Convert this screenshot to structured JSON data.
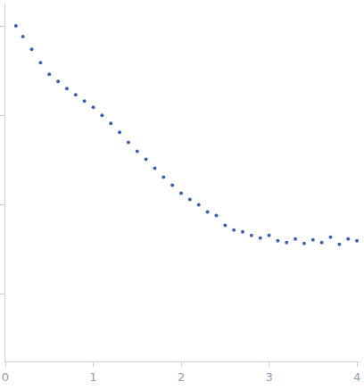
{
  "chart_data": {
    "type": "scatter",
    "x": [
      0.12,
      0.2,
      0.3,
      0.4,
      0.5,
      0.6,
      0.7,
      0.8,
      0.9,
      1.0,
      1.1,
      1.2,
      1.3,
      1.4,
      1.5,
      1.6,
      1.7,
      1.8,
      1.9,
      2.0,
      2.1,
      2.2,
      2.3,
      2.4,
      2.5,
      2.6,
      2.7,
      2.8,
      2.9,
      3.0,
      3.1,
      3.2,
      3.3,
      3.4,
      3.5,
      3.6,
      3.7,
      3.8,
      3.9,
      4.0
    ],
    "values": [
      4.0,
      3.88,
      3.74,
      3.59,
      3.46,
      3.38,
      3.3,
      3.23,
      3.16,
      3.09,
      3.0,
      2.91,
      2.81,
      2.7,
      2.6,
      2.51,
      2.41,
      2.31,
      2.22,
      2.13,
      2.06,
      2.0,
      1.92,
      1.88,
      1.77,
      1.72,
      1.7,
      1.66,
      1.63,
      1.66,
      1.6,
      1.58,
      1.62,
      1.57,
      1.61,
      1.58,
      1.64,
      1.56,
      1.62,
      1.6
    ],
    "color": "#3d62b3",
    "marker": "circle",
    "xlim": [
      0,
      4.04
    ],
    "xticks": [
      0,
      1,
      2,
      3,
      4
    ],
    "ylim": [
      0.25,
      4.25
    ],
    "yticks": [
      1,
      2,
      3,
      4
    ],
    "grid": false,
    "tick_labels": "x"
  }
}
